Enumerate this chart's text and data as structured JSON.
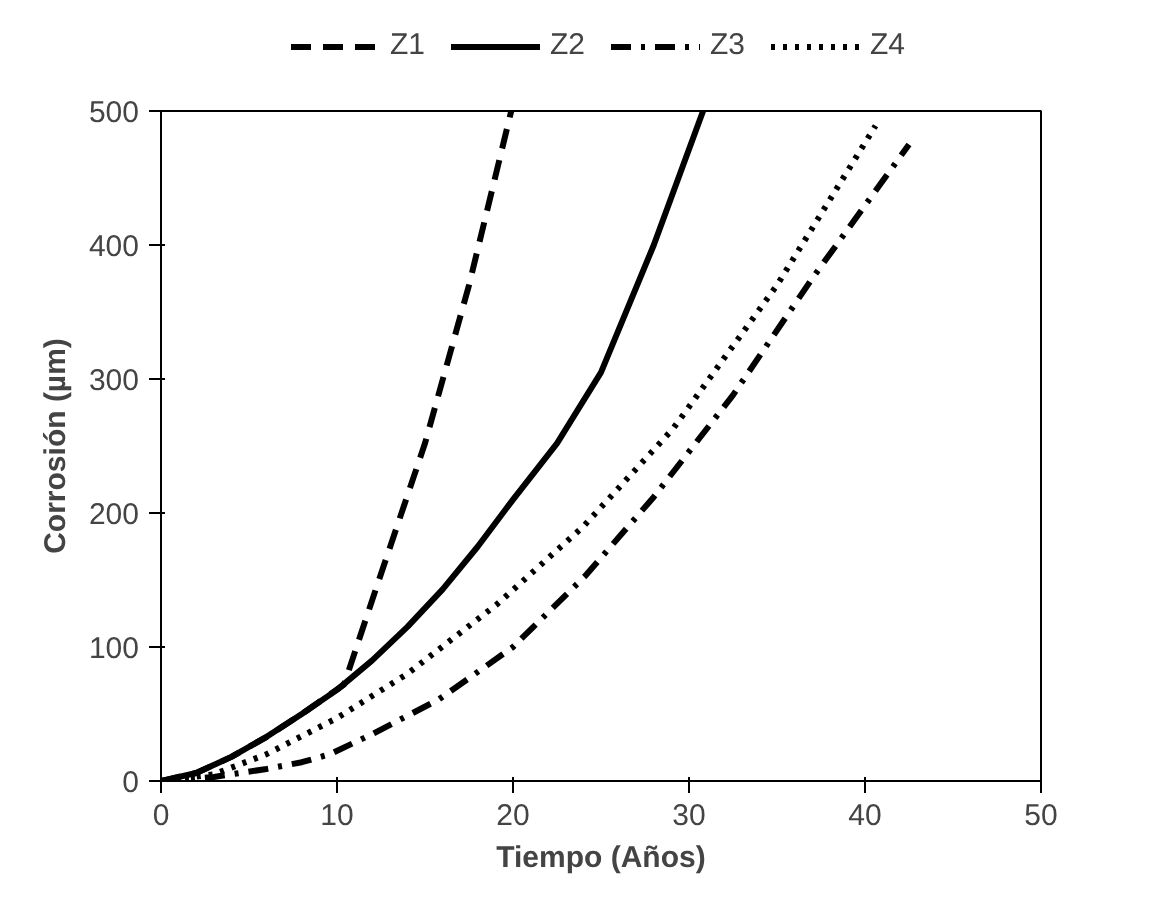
{
  "chart_data": {
    "type": "line",
    "xlabel": "Tiempo (Años)",
    "ylabel": "Corrosión (µm)",
    "xlim": [
      0,
      50
    ],
    "ylim": [
      0,
      500
    ],
    "xticks": [
      0,
      10,
      20,
      30,
      40,
      50
    ],
    "yticks": [
      0,
      100,
      200,
      300,
      400,
      500
    ],
    "legend": "top",
    "grid": false,
    "series": [
      {
        "name": "Z1",
        "color": "#000000",
        "line_style": "dashed",
        "x": [
          0,
          2,
          4,
          6,
          8,
          10.4,
          12,
          15,
          17.5,
          19.9
        ],
        "values": [
          0,
          6,
          18,
          33,
          50,
          72,
          135,
          252,
          370,
          500
        ]
      },
      {
        "name": "Z2",
        "color": "#000000",
        "line_style": "solid",
        "x": [
          0,
          2,
          4,
          6,
          8,
          10,
          12,
          14,
          16,
          18,
          20,
          22.5,
          25,
          28,
          30.8
        ],
        "values": [
          0,
          6,
          18,
          33,
          50,
          68,
          90,
          115,
          143,
          175,
          210,
          252,
          305,
          400,
          500
        ]
      },
      {
        "name": "Z3",
        "color": "#000000",
        "line_style": "dashdot",
        "x": [
          0,
          3,
          6,
          8,
          9.6,
          12,
          15.8,
          20,
          24.1,
          28,
          32.5,
          37,
          42.5
        ],
        "values": [
          0,
          3,
          9,
          14,
          20,
          35,
          61,
          100,
          153,
          212,
          288,
          375,
          475
        ]
      },
      {
        "name": "Z4",
        "color": "#000000",
        "line_style": "dotted",
        "x": [
          0,
          3,
          6,
          10,
          14,
          19.1,
          24,
          29.1,
          35,
          40.6
        ],
        "values": [
          0,
          5,
          20,
          47,
          80,
          132,
          190,
          263,
          370,
          489
        ]
      }
    ]
  }
}
